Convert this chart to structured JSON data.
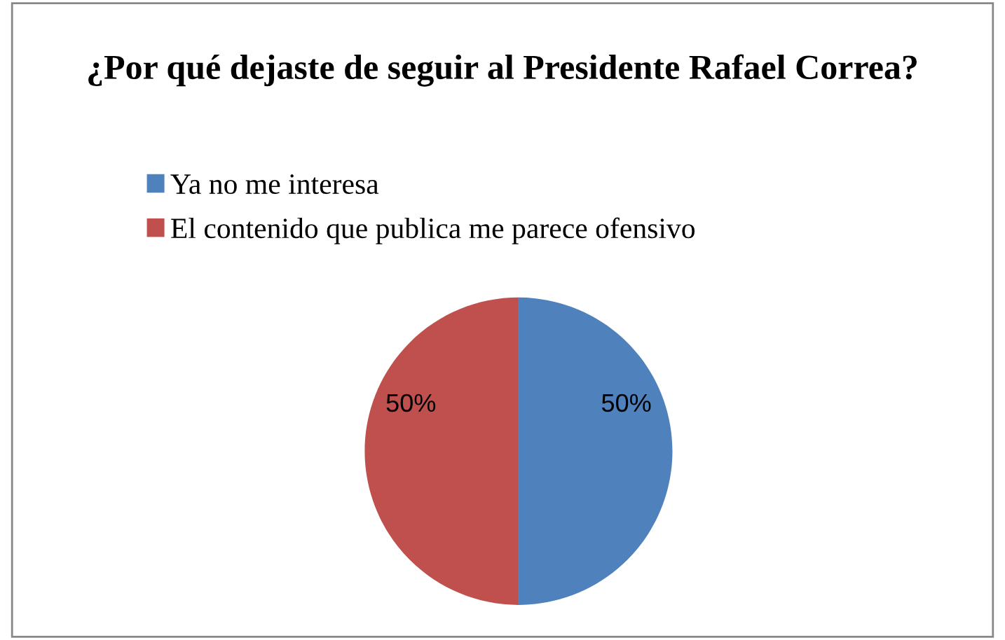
{
  "chart_data": {
    "type": "pie",
    "title": "¿Por qué dejaste de seguir al Presidente Rafael Correa?",
    "categories": [
      "Ya no me interesa",
      "El contenido que publica me parece ofensivo"
    ],
    "values": [
      50,
      50
    ],
    "colors": [
      "#4f81bd",
      "#c0504d"
    ],
    "value_labels": [
      "50%",
      "50%"
    ],
    "legend": "top left"
  }
}
